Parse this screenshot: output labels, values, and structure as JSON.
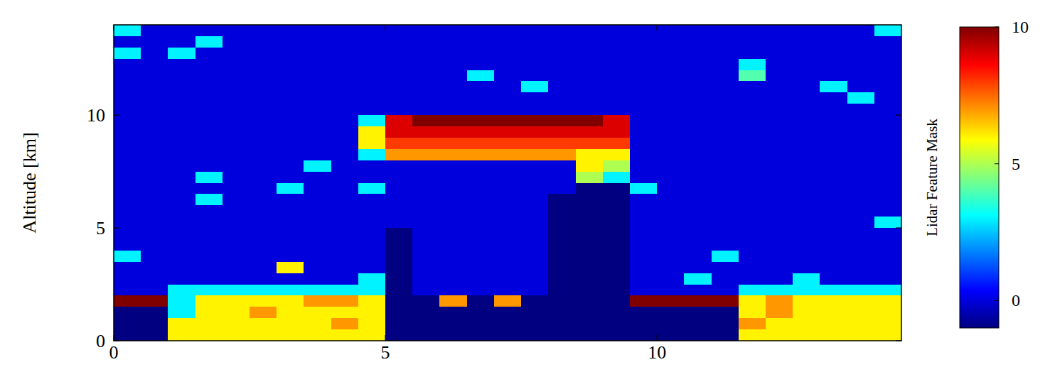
{
  "chart_data": {
    "type": "heatmap",
    "y_label": "Altitude [km]",
    "colorbar_label": "Lidar Feature Mask",
    "x": [
      0.25,
      0.75,
      1.25,
      1.75,
      2.25,
      2.75,
      3.25,
      3.75,
      4.25,
      4.75,
      5.25,
      5.75,
      6.25,
      6.75,
      7.25,
      7.75,
      8.25,
      8.75,
      9.25,
      9.75,
      10.25,
      10.75,
      11.25,
      11.75,
      12.25,
      12.75,
      13.25,
      13.75,
      14.25
    ],
    "y": [
      13.75,
      13.25,
      12.75,
      12.25,
      11.75,
      11.25,
      10.75,
      10.25,
      9.75,
      9.25,
      8.75,
      8.25,
      7.75,
      7.25,
      6.75,
      6.25,
      5.75,
      5.25,
      4.75,
      4.25,
      3.75,
      3.25,
      2.75,
      2.25,
      1.75,
      1.25,
      0.75,
      0.25
    ],
    "z": [
      [
        3,
        0,
        0,
        0,
        0,
        0,
        0,
        0,
        0,
        0,
        0,
        0,
        0,
        0,
        0,
        0,
        0,
        0,
        0,
        0,
        0,
        0,
        0,
        0,
        0,
        0,
        0,
        0,
        3
      ],
      [
        0,
        0,
        0,
        3,
        0,
        0,
        0,
        0,
        0,
        0,
        0,
        0,
        0,
        0,
        0,
        0,
        0,
        0,
        0,
        0,
        0,
        0,
        0,
        0,
        0,
        0,
        0,
        0,
        0
      ],
      [
        3,
        0,
        3,
        0,
        0,
        0,
        0,
        0,
        0,
        0,
        0,
        0,
        0,
        0,
        0,
        0,
        0,
        0,
        0,
        0,
        0,
        0,
        0,
        0,
        0,
        0,
        0,
        0,
        0
      ],
      [
        0,
        0,
        0,
        0,
        0,
        0,
        0,
        0,
        0,
        0,
        0,
        0,
        0,
        0,
        0,
        0,
        0,
        0,
        0,
        0,
        0,
        0,
        0,
        3,
        0,
        0,
        0,
        0,
        0
      ],
      [
        0,
        0,
        0,
        0,
        0,
        0,
        0,
        0,
        0,
        0,
        0,
        0,
        0,
        3,
        0,
        0,
        0,
        0,
        0,
        0,
        0,
        0,
        0,
        4,
        0,
        0,
        0,
        0,
        0
      ],
      [
        0,
        0,
        0,
        0,
        0,
        0,
        0,
        0,
        0,
        0,
        0,
        0,
        0,
        0,
        0,
        3,
        0,
        0,
        0,
        0,
        0,
        0,
        0,
        0,
        0,
        0,
        3,
        0,
        0
      ],
      [
        0,
        0,
        0,
        0,
        0,
        0,
        0,
        0,
        0,
        0,
        0,
        0,
        0,
        0,
        0,
        0,
        0,
        0,
        0,
        0,
        0,
        0,
        0,
        0,
        0,
        0,
        0,
        3,
        0
      ],
      [
        0,
        0,
        0,
        0,
        0,
        0,
        0,
        0,
        0,
        0,
        0,
        0,
        0,
        0,
        0,
        0,
        0,
        0,
        0,
        0,
        0,
        0,
        0,
        0,
        0,
        0,
        0,
        0,
        0
      ],
      [
        0,
        0,
        0,
        0,
        0,
        0,
        0,
        0,
        0,
        3,
        9,
        10,
        10,
        10,
        10,
        10,
        10,
        10,
        9,
        0,
        0,
        0,
        0,
        0,
        0,
        0,
        0,
        0,
        0
      ],
      [
        0,
        0,
        0,
        0,
        0,
        0,
        0,
        0,
        0,
        6,
        9,
        9,
        9,
        9,
        9,
        9,
        9,
        9,
        9,
        0,
        0,
        0,
        0,
        0,
        0,
        0,
        0,
        0,
        0
      ],
      [
        0,
        0,
        0,
        0,
        0,
        0,
        0,
        0,
        0,
        6,
        8,
        8,
        8,
        8,
        8,
        8,
        8,
        8,
        8,
        0,
        0,
        0,
        0,
        0,
        0,
        0,
        0,
        0,
        0
      ],
      [
        0,
        0,
        0,
        0,
        0,
        0,
        0,
        0,
        0,
        3,
        7,
        7,
        7,
        7,
        7,
        7,
        7,
        6,
        6,
        0,
        0,
        0,
        0,
        0,
        0,
        0,
        0,
        0,
        0
      ],
      [
        0,
        0,
        0,
        0,
        0,
        0,
        0,
        3,
        0,
        0,
        0,
        0,
        0,
        0,
        0,
        0,
        0,
        6,
        5,
        0,
        0,
        0,
        0,
        0,
        0,
        0,
        0,
        0,
        0
      ],
      [
        0,
        0,
        0,
        3,
        0,
        0,
        0,
        0,
        0,
        0,
        0,
        0,
        0,
        0,
        0,
        0,
        0,
        5,
        3,
        0,
        0,
        0,
        0,
        0,
        0,
        0,
        0,
        0,
        0
      ],
      [
        0,
        0,
        0,
        0,
        0,
        0,
        3,
        0,
        0,
        3,
        0,
        0,
        0,
        0,
        0,
        0,
        0,
        -1,
        -1,
        3,
        0,
        0,
        0,
        0,
        0,
        0,
        0,
        0,
        0
      ],
      [
        0,
        0,
        0,
        3,
        0,
        0,
        0,
        0,
        0,
        0,
        0,
        0,
        0,
        0,
        0,
        0,
        -1,
        -1,
        -1,
        0,
        0,
        0,
        0,
        0,
        0,
        0,
        0,
        0,
        0
      ],
      [
        0,
        0,
        0,
        0,
        0,
        0,
        0,
        0,
        0,
        0,
        0,
        0,
        0,
        0,
        0,
        0,
        -1,
        -1,
        -1,
        0,
        0,
        0,
        0,
        0,
        0,
        0,
        0,
        0,
        0
      ],
      [
        0,
        0,
        0,
        0,
        0,
        0,
        0,
        0,
        0,
        0,
        0,
        0,
        0,
        0,
        0,
        0,
        -1,
        -1,
        -1,
        0,
        0,
        0,
        0,
        0,
        0,
        0,
        0,
        0,
        3
      ],
      [
        0,
        0,
        0,
        0,
        0,
        0,
        0,
        0,
        0,
        0,
        -1,
        0,
        0,
        0,
        0,
        0,
        -1,
        -1,
        -1,
        0,
        0,
        0,
        0,
        0,
        0,
        0,
        0,
        0,
        0
      ],
      [
        0,
        0,
        0,
        0,
        0,
        0,
        0,
        0,
        0,
        0,
        -1,
        0,
        0,
        0,
        0,
        0,
        -1,
        -1,
        -1,
        0,
        0,
        0,
        0,
        0,
        0,
        0,
        0,
        0,
        0
      ],
      [
        3,
        0,
        0,
        0,
        0,
        0,
        0,
        0,
        0,
        0,
        -1,
        0,
        0,
        0,
        0,
        0,
        -1,
        -1,
        -1,
        0,
        0,
        0,
        3,
        0,
        0,
        0,
        0,
        0,
        0
      ],
      [
        0,
        0,
        0,
        0,
        0,
        0,
        6,
        0,
        0,
        0,
        -1,
        0,
        0,
        0,
        0,
        0,
        -1,
        -1,
        -1,
        0,
        0,
        0,
        0,
        0,
        0,
        0,
        0,
        0,
        0
      ],
      [
        0,
        0,
        0,
        0,
        0,
        0,
        0,
        0,
        0,
        3,
        -1,
        0,
        0,
        0,
        0,
        0,
        -1,
        -1,
        -1,
        0,
        0,
        3,
        0,
        0,
        0,
        3,
        0,
        0,
        0
      ],
      [
        0,
        0,
        3,
        3,
        3,
        3,
        3,
        3,
        3,
        3,
        -1,
        0,
        0,
        0,
        0,
        0,
        -1,
        -1,
        -1,
        0,
        0,
        0,
        0,
        3,
        3,
        3,
        3,
        3,
        3
      ],
      [
        10,
        10,
        3,
        6,
        6,
        6,
        6,
        7,
        7,
        6,
        -1,
        -1,
        7,
        -1,
        7,
        -1,
        -1,
        -1,
        -1,
        10,
        10,
        10,
        10,
        6,
        7,
        6,
        6,
        6,
        6
      ],
      [
        -1,
        -1,
        3,
        6,
        6,
        7,
        6,
        6,
        6,
        6,
        -1,
        -1,
        -1,
        -1,
        -1,
        -1,
        -1,
        -1,
        -1,
        -1,
        -1,
        -1,
        -1,
        6,
        7,
        6,
        6,
        6,
        6
      ],
      [
        -1,
        -1,
        6,
        6,
        6,
        6,
        6,
        6,
        7,
        6,
        -1,
        -1,
        -1,
        -1,
        -1,
        -1,
        -1,
        -1,
        -1,
        -1,
        -1,
        -1,
        -1,
        7,
        6,
        6,
        6,
        6,
        6
      ],
      [
        -1,
        -1,
        6,
        6,
        6,
        6,
        6,
        6,
        6,
        6,
        -1,
        -1,
        -1,
        -1,
        -1,
        -1,
        -1,
        -1,
        -1,
        -1,
        -1,
        -1,
        -1,
        6,
        6,
        6,
        6,
        6,
        6
      ]
    ],
    "xlim": [
      0,
      14.5
    ],
    "ylim": [
      0,
      14
    ],
    "xticks": [
      0,
      5,
      10
    ],
    "yticks": [
      0,
      5,
      10
    ],
    "colorbar_range": [
      -1,
      10
    ],
    "colorbar_ticks": [
      0,
      5,
      10
    ]
  }
}
